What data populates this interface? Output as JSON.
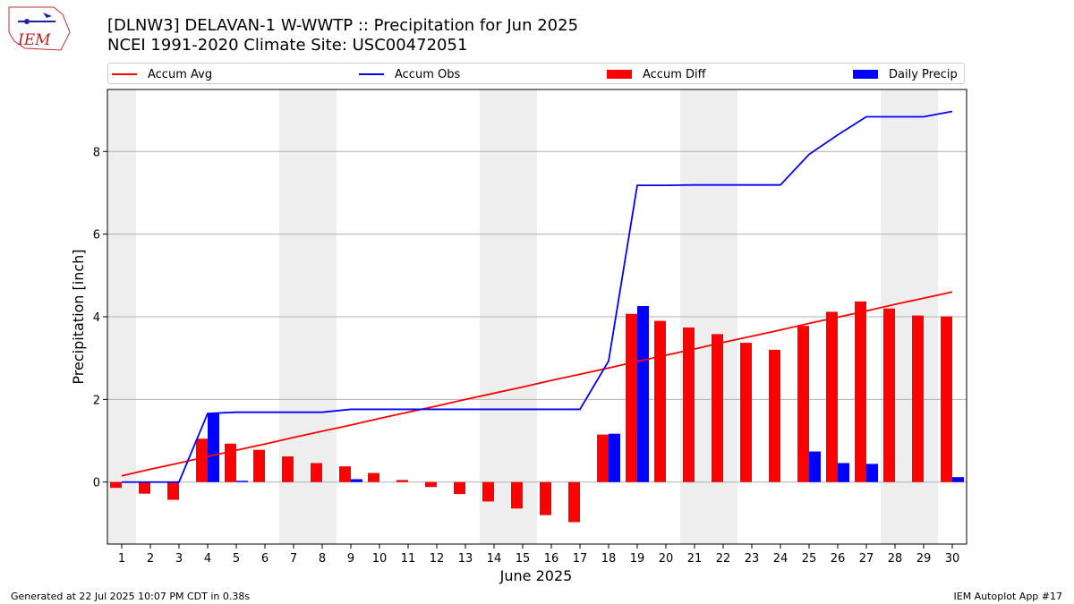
{
  "header": {
    "title_line1": "[DLNW3] DELAVAN-1 W-WWTP :: Precipitation for Jun 2025",
    "title_line2": "NCEI 1991-2020 Climate Site: USC00472051"
  },
  "logo": {
    "text": "IEM"
  },
  "footer": {
    "left": "Generated at 22 Jul 2025 10:07 PM CDT in 0.38s",
    "right": "IEM Autoplot App #17"
  },
  "colors": {
    "avg": "#ff0000",
    "obs": "#0000ff",
    "diff": "#ff0000",
    "daily": "#0000ff",
    "weekend_shade": "#eeeeee",
    "grid": "#b0b0b0"
  },
  "chart_data": {
    "type": "bar",
    "xlabel": "June 2025",
    "ylabel": "Precipitation [inch]",
    "ylim": [
      -1.5,
      9.5
    ],
    "yticks": [
      0,
      2,
      4,
      6,
      8
    ],
    "grid": "horizontal",
    "legend_placement": "top",
    "legend": [
      "Accum Avg",
      "Accum Obs",
      "Accum Diff",
      "Daily Precip"
    ],
    "weekend_shaded_days": [
      1,
      7,
      8,
      14,
      15,
      21,
      22,
      28,
      29
    ],
    "x": [
      1,
      2,
      3,
      4,
      5,
      6,
      7,
      8,
      9,
      10,
      11,
      12,
      13,
      14,
      15,
      16,
      17,
      18,
      19,
      20,
      21,
      22,
      23,
      24,
      25,
      26,
      27,
      28,
      29,
      30
    ],
    "series": [
      {
        "name": "Accum Avg",
        "kind": "line",
        "color": "#ff0000",
        "values": [
          0.15,
          0.31,
          0.46,
          0.62,
          0.77,
          0.92,
          1.08,
          1.23,
          1.38,
          1.54,
          1.69,
          1.84,
          2.0,
          2.15,
          2.3,
          2.46,
          2.61,
          2.76,
          2.92,
          3.07,
          3.22,
          3.38,
          3.53,
          3.68,
          3.84,
          3.99,
          4.14,
          4.3,
          4.45,
          4.6
        ]
      },
      {
        "name": "Accum Obs",
        "kind": "line",
        "color": "#0000ff",
        "values": [
          0.0,
          0.0,
          0.0,
          1.66,
          1.69,
          1.69,
          1.69,
          1.69,
          1.76,
          1.76,
          1.76,
          1.76,
          1.76,
          1.76,
          1.76,
          1.76,
          1.76,
          2.93,
          7.18,
          7.18,
          7.19,
          7.19,
          7.19,
          7.19,
          7.93,
          8.4,
          8.84,
          8.84,
          8.84,
          8.97
        ]
      },
      {
        "name": "Accum Diff",
        "kind": "bar",
        "color": "#ff0000",
        "values": [
          -0.14,
          -0.28,
          -0.43,
          1.05,
          0.93,
          0.78,
          0.62,
          0.46,
          0.38,
          0.22,
          0.05,
          -0.12,
          -0.29,
          -0.47,
          -0.64,
          -0.8,
          -0.97,
          1.15,
          4.07,
          3.9,
          3.74,
          3.58,
          3.37,
          3.2,
          3.78,
          4.12,
          4.37,
          4.2,
          4.03,
          4.01
        ]
      },
      {
        "name": "Daily Precip",
        "kind": "bar",
        "color": "#0000ff",
        "values": [
          0.0,
          0.0,
          0.0,
          1.66,
          0.03,
          0.0,
          0.0,
          0.0,
          0.07,
          0.0,
          0.0,
          0.0,
          0.0,
          0.0,
          0.0,
          0.0,
          0.0,
          1.17,
          4.26,
          0.0,
          0.0,
          0.0,
          0.0,
          0.0,
          0.74,
          0.46,
          0.44,
          0.0,
          0.0,
          0.12
        ]
      }
    ]
  }
}
